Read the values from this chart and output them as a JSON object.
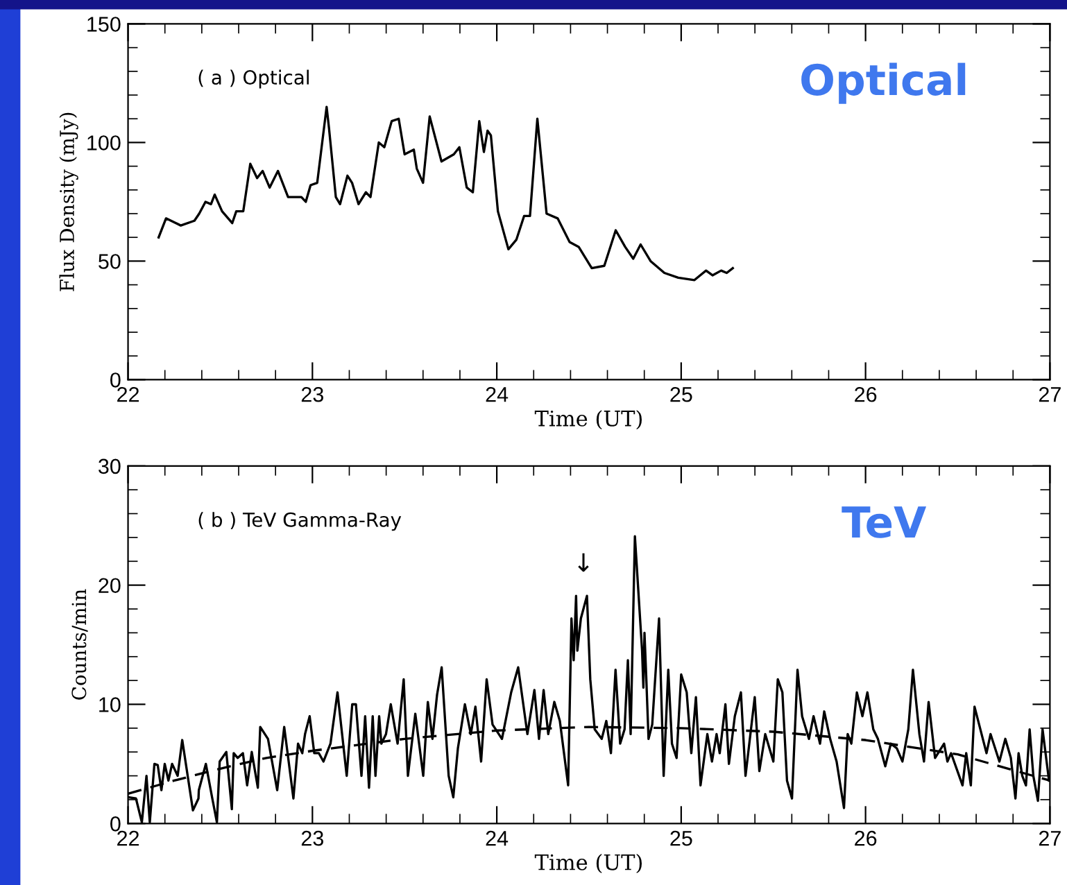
{
  "chart_data": [
    {
      "type": "line",
      "xlabel": "Time (UT)",
      "ylabel": "Flux Density (mJy)",
      "xlim": [
        22,
        27
      ],
      "xticks": [
        22,
        {
          "value": 22.2,
          "label": null
        },
        {
          "value": 22.4,
          "label": null
        },
        {
          "value": 22.6,
          "label": null
        },
        {
          "value": 22.8,
          "label": null
        },
        23,
        {
          "value": 23.2,
          "label": null
        },
        {
          "value": 23.4,
          "label": null
        },
        {
          "value": 23.6,
          "label": null
        },
        {
          "value": 23.8,
          "label": null
        },
        24,
        {
          "value": 24.2,
          "label": null
        },
        {
          "value": 24.4,
          "label": null
        },
        {
          "value": 24.6,
          "label": null
        },
        {
          "value": 24.8,
          "label": null
        },
        25,
        {
          "value": 25.2,
          "label": null
        },
        {
          "value": 25.4,
          "label": null
        },
        {
          "value": 25.6,
          "label": null
        },
        {
          "value": 25.8,
          "label": null
        },
        26,
        {
          "value": 26.2,
          "label": null
        },
        {
          "value": 26.4,
          "label": null
        },
        {
          "value": 26.6,
          "label": null
        },
        {
          "value": 26.8,
          "label": null
        },
        27
      ],
      "ylim": [
        0,
        150
      ],
      "yticks": [
        0,
        {
          "value": 10,
          "label": null
        },
        {
          "value": 20,
          "label": null
        },
        {
          "value": 30,
          "label": null
        },
        {
          "value": 40,
          "label": null
        },
        50,
        {
          "value": 60,
          "label": null
        },
        {
          "value": 70,
          "label": null
        },
        {
          "value": 80,
          "label": null
        },
        {
          "value": 90,
          "label": null
        },
        100,
        {
          "value": 110,
          "label": null
        },
        {
          "value": 120,
          "label": null
        },
        {
          "value": 130,
          "label": null
        },
        {
          "value": 140,
          "label": null
        },
        150
      ],
      "annotations": [
        "( a ) Optical",
        "Optical"
      ],
      "series": [
        {
          "color": "#000000",
          "x": [
            22.166,
            22.206,
            22.286,
            22.36,
            22.386,
            22.42,
            22.45,
            22.47,
            22.51,
            22.565,
            22.587,
            22.625,
            22.663,
            22.7,
            22.73,
            22.768,
            22.813,
            22.868,
            22.94,
            22.964,
            22.99,
            23.026,
            23.077,
            23.09,
            23.127,
            23.15,
            23.19,
            23.215,
            23.25,
            23.29,
            23.315,
            23.36,
            23.39,
            23.43,
            23.468,
            23.5,
            23.55,
            23.566,
            23.6,
            23.636,
            23.7,
            23.767,
            23.797,
            23.837,
            23.87,
            23.905,
            23.93,
            23.95,
            23.968,
            24.006,
            24.063,
            24.106,
            24.148,
            24.18,
            24.22,
            24.27,
            24.33,
            24.395,
            24.444,
            24.515,
            24.583,
            24.645,
            24.696,
            24.74,
            24.78,
            24.834,
            24.909,
            24.984,
            25.072,
            25.135,
            25.17,
            25.217,
            25.247,
            25.28
          ],
          "values": [
            60,
            68,
            65,
            67,
            70,
            75,
            74,
            78,
            71,
            66,
            71,
            71,
            91,
            85,
            88,
            81,
            88,
            77,
            77,
            75,
            82,
            83,
            115,
            106,
            77,
            74,
            86,
            83,
            74,
            79,
            77,
            100,
            98,
            109,
            110,
            95,
            97,
            89,
            83,
            111,
            92,
            95,
            98,
            81,
            79,
            109,
            96,
            105,
            103,
            71,
            55,
            59,
            69,
            69,
            110,
            70,
            68,
            58,
            56,
            47,
            48,
            63,
            56,
            51,
            57,
            50,
            45,
            43,
            42,
            46,
            44,
            46,
            45,
            47
          ]
        }
      ]
    },
    {
      "type": "line",
      "xlabel": "Time (UT)",
      "ylabel": "Counts/min",
      "xlim": [
        22,
        27
      ],
      "xticks": [
        22,
        {
          "value": 22.2,
          "label": null
        },
        {
          "value": 22.4,
          "label": null
        },
        {
          "value": 22.6,
          "label": null
        },
        {
          "value": 22.8,
          "label": null
        },
        23,
        {
          "value": 23.2,
          "label": null
        },
        {
          "value": 23.4,
          "label": null
        },
        {
          "value": 23.6,
          "label": null
        },
        {
          "value": 23.8,
          "label": null
        },
        24,
        {
          "value": 24.2,
          "label": null
        },
        {
          "value": 24.4,
          "label": null
        },
        {
          "value": 24.6,
          "label": null
        },
        {
          "value": 24.8,
          "label": null
        },
        25,
        {
          "value": 25.2,
          "label": null
        },
        {
          "value": 25.4,
          "label": null
        },
        {
          "value": 25.6,
          "label": null
        },
        {
          "value": 25.8,
          "label": null
        },
        26,
        {
          "value": 26.2,
          "label": null
        },
        {
          "value": 26.4,
          "label": null
        },
        {
          "value": 26.6,
          "label": null
        },
        {
          "value": 26.8,
          "label": null
        },
        27
      ],
      "ylim": [
        0,
        30
      ],
      "yticks": [
        0,
        {
          "value": 2,
          "label": null
        },
        {
          "value": 4,
          "label": null
        },
        {
          "value": 6,
          "label": null
        },
        {
          "value": 8,
          "label": null
        },
        10,
        {
          "value": 12,
          "label": null
        },
        {
          "value": 14,
          "label": null
        },
        {
          "value": 16,
          "label": null
        },
        {
          "value": 18,
          "label": null
        },
        20,
        {
          "value": 22,
          "label": null
        },
        {
          "value": 24,
          "label": null
        },
        {
          "value": 26,
          "label": null
        },
        {
          "value": 28,
          "label": null
        },
        30
      ],
      "annotations": [
        "( b ) TeV Gamma-Ray",
        "TeV",
        "↓"
      ],
      "series": [
        {
          "color": "#000000",
          "line_style": "solid",
          "x": [
            22.0,
            22.043,
            22.075,
            22.1,
            22.118,
            22.143,
            22.161,
            22.181,
            22.199,
            22.219,
            22.239,
            22.269,
            22.294,
            22.352,
            22.382,
            22.384,
            22.422,
            22.457,
            22.482,
            22.497,
            22.533,
            22.563,
            22.573,
            22.595,
            22.623,
            22.646,
            22.671,
            22.704,
            22.717,
            22.759,
            22.809,
            22.847,
            22.897,
            22.922,
            22.945,
            22.96,
            22.985,
            23.01,
            23.035,
            23.06,
            23.098,
            23.136,
            23.186,
            23.216,
            23.236,
            23.266,
            23.286,
            23.307,
            23.327,
            23.342,
            23.362,
            23.374,
            23.399,
            23.425,
            23.462,
            23.495,
            23.518,
            23.558,
            23.601,
            23.626,
            23.651,
            23.676,
            23.701,
            23.739,
            23.764,
            23.789,
            23.827,
            23.859,
            23.884,
            23.915,
            23.945,
            23.977,
            24.028,
            24.078,
            24.116,
            24.166,
            24.204,
            24.229,
            24.254,
            24.279,
            24.312,
            24.342,
            24.387,
            24.405,
            24.417,
            24.43,
            24.437,
            24.456,
            24.489,
            24.507,
            24.531,
            24.569,
            24.594,
            24.619,
            24.644,
            24.669,
            24.693,
            24.711,
            24.726,
            24.749,
            24.788,
            24.795,
            24.801,
            24.811,
            24.823,
            24.843,
            24.88,
            24.905,
            24.93,
            24.95,
            24.975,
            25.0,
            25.03,
            25.055,
            25.08,
            25.105,
            25.142,
            25.167,
            25.192,
            25.209,
            25.24,
            25.259,
            25.291,
            25.324,
            25.349,
            25.399,
            25.424,
            25.456,
            25.5,
            25.524,
            25.549,
            25.574,
            25.601,
            25.631,
            25.656,
            25.693,
            25.718,
            25.753,
            25.776,
            25.808,
            25.843,
            25.883,
            25.903,
            25.923,
            25.953,
            25.983,
            26.01,
            26.042,
            26.067,
            26.107,
            26.137,
            26.17,
            26.2,
            26.232,
            26.257,
            26.292,
            26.317,
            26.342,
            26.377,
            26.426,
            26.444,
            26.464,
            26.526,
            26.546,
            26.571,
            26.591,
            26.656,
            26.678,
            26.726,
            26.758,
            26.788,
            26.813,
            26.83,
            26.85,
            26.87,
            26.89,
            26.91,
            26.935,
            26.96,
            26.995
          ],
          "values": [
            2.2,
            2.1,
            0.1,
            4.0,
            0.1,
            5.0,
            4.9,
            2.8,
            5.0,
            3.6,
            5.0,
            4.0,
            7.0,
            1.1,
            2.1,
            2.8,
            5.0,
            2.1,
            0.1,
            5.2,
            6.0,
            1.2,
            5.9,
            5.5,
            5.9,
            3.2,
            6.0,
            3.0,
            8.1,
            7.1,
            2.8,
            8.1,
            2.1,
            6.7,
            5.9,
            7.5,
            9.0,
            5.9,
            5.9,
            5.2,
            6.7,
            11.0,
            4.0,
            10.0,
            10.0,
            4.0,
            9.0,
            3.0,
            9.0,
            4.0,
            9.0,
            6.7,
            7.5,
            10.0,
            6.7,
            12.1,
            4.0,
            9.2,
            4.0,
            10.2,
            7.1,
            10.8,
            13.1,
            4.0,
            2.2,
            6.3,
            10.0,
            7.5,
            9.8,
            5.2,
            12.1,
            8.3,
            7.1,
            11.0,
            13.1,
            7.5,
            11.2,
            7.1,
            11.2,
            7.5,
            10.2,
            8.6,
            3.2,
            17.2,
            13.7,
            19.1,
            14.5,
            17.2,
            19.1,
            12.1,
            7.9,
            7.1,
            8.6,
            5.9,
            12.9,
            6.7,
            7.9,
            13.7,
            7.5,
            24.1,
            14.5,
            11.4,
            16.0,
            12.1,
            7.1,
            8.3,
            17.2,
            4.0,
            12.9,
            6.7,
            5.5,
            12.5,
            11.0,
            5.9,
            10.6,
            3.2,
            7.5,
            5.2,
            7.5,
            5.9,
            10.0,
            5.0,
            9.0,
            11.0,
            4.0,
            10.6,
            4.4,
            7.5,
            5.2,
            12.1,
            11.0,
            3.6,
            2.1,
            12.9,
            9.0,
            7.1,
            9.0,
            6.7,
            9.4,
            7.1,
            5.2,
            1.3,
            7.5,
            6.7,
            11.0,
            9.0,
            11.0,
            7.9,
            7.1,
            4.8,
            6.7,
            6.3,
            5.2,
            7.9,
            12.9,
            7.5,
            5.2,
            10.2,
            5.5,
            6.7,
            5.2,
            5.9,
            3.2,
            5.9,
            3.2,
            9.8,
            5.9,
            7.5,
            5.2,
            7.1,
            5.5,
            2.1,
            5.9,
            4.0,
            3.2,
            7.9,
            4.0,
            1.9,
            7.9,
            3.6
          ]
        },
        {
          "color": "#000000",
          "line_style": "dashed",
          "x": [
            22,
            22.25,
            22.5,
            22.75,
            23,
            23.5,
            24,
            24.5,
            25,
            25.5,
            26,
            26.5,
            27
          ],
          "values": [
            2.5,
            3.6,
            4.6,
            5.5,
            6.1,
            7.1,
            7.8,
            8.1,
            8.0,
            7.7,
            7.0,
            5.8,
            3.6
          ]
        }
      ]
    }
  ]
}
